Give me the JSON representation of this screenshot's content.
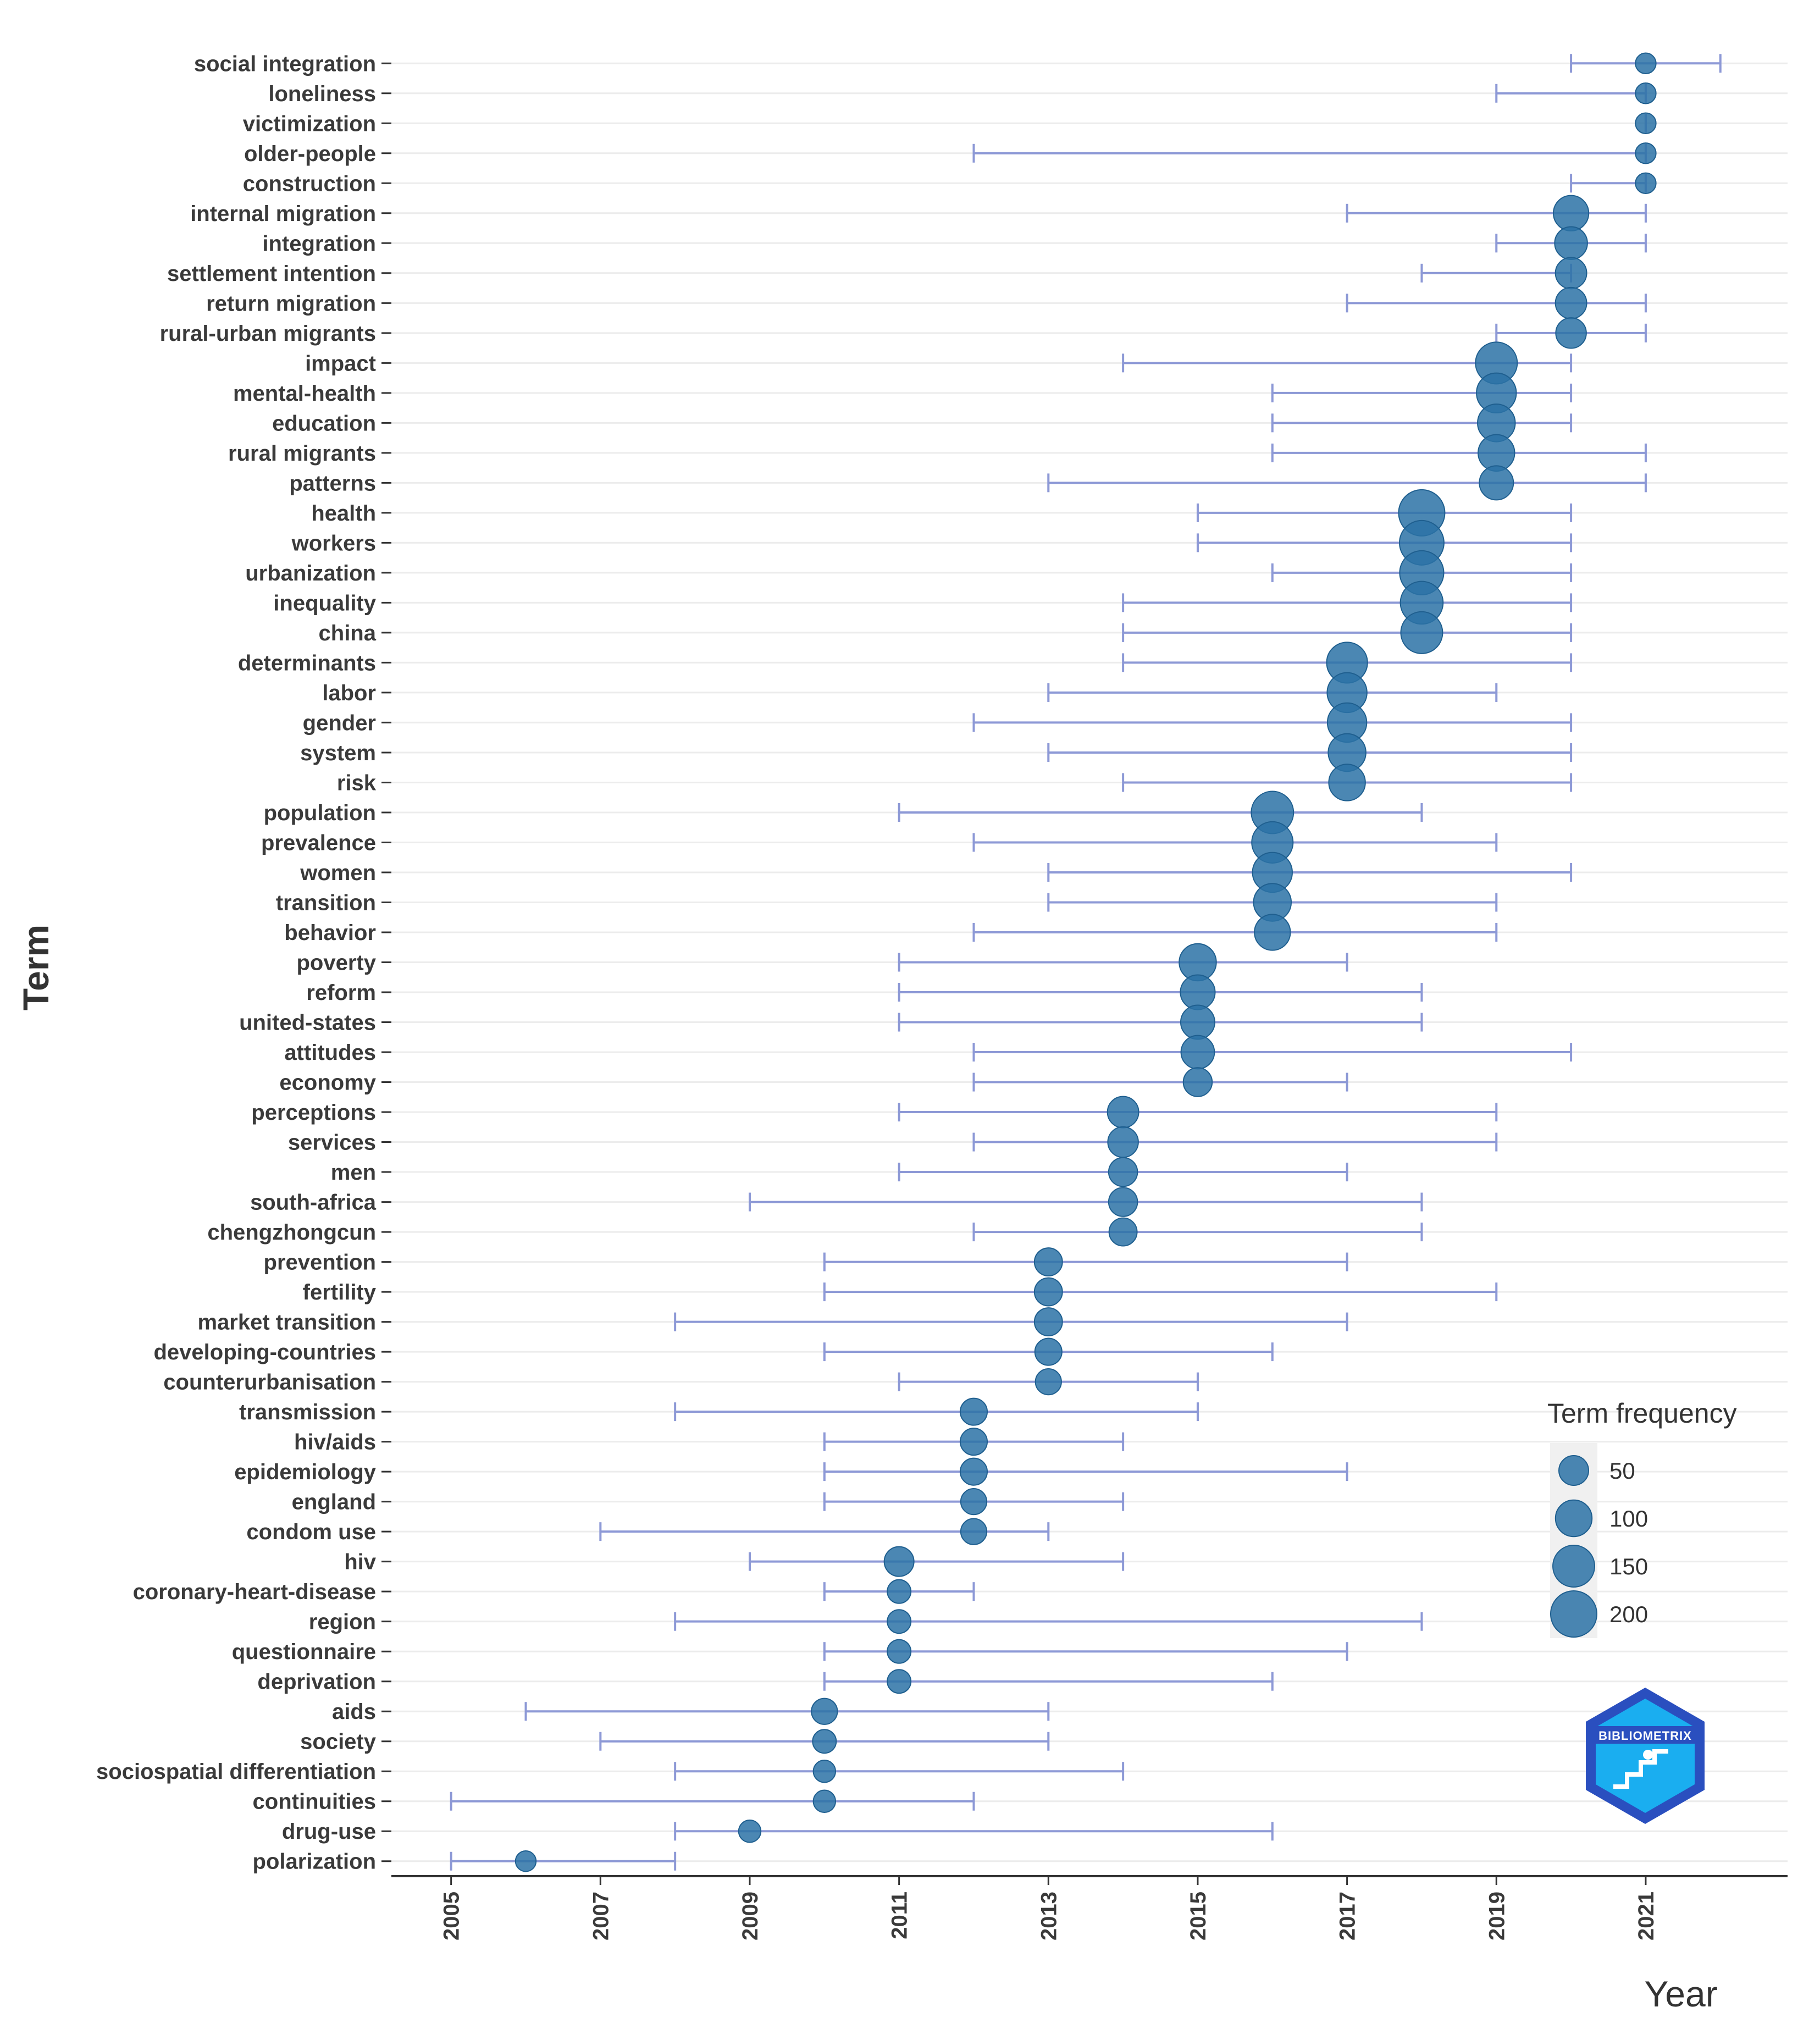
{
  "chart_data": {
    "type": "dot-range",
    "xlabel": "Year",
    "ylabel": "Term",
    "xlim": [
      2004.2,
      2022.9
    ],
    "x_ticks": [
      2005,
      2007,
      2009,
      2011,
      2013,
      2015,
      2017,
      2019,
      2021
    ],
    "terms": [
      {
        "term": "social integration",
        "year": 2021,
        "q1": 2020,
        "q3": 2022,
        "freq": 10
      },
      {
        "term": "loneliness",
        "year": 2021,
        "q1": 2019,
        "q3": 2021,
        "freq": 10
      },
      {
        "term": "victimization",
        "year": 2021,
        "q1": 2021,
        "q3": 2021,
        "freq": 10
      },
      {
        "term": "older-people",
        "year": 2021,
        "q1": 2012,
        "q3": 2021,
        "freq": 10
      },
      {
        "term": "construction",
        "year": 2021,
        "q1": 2020,
        "q3": 2021,
        "freq": 10
      },
      {
        "term": "internal migration",
        "year": 2020,
        "q1": 2017,
        "q3": 2021,
        "freq": 90
      },
      {
        "term": "integration",
        "year": 2020,
        "q1": 2019,
        "q3": 2021,
        "freq": 70
      },
      {
        "term": "settlement intention",
        "year": 2020,
        "q1": 2018,
        "q3": 2020,
        "freq": 60
      },
      {
        "term": "return migration",
        "year": 2020,
        "q1": 2017,
        "q3": 2021,
        "freq": 60
      },
      {
        "term": "rural-urban migrants",
        "year": 2020,
        "q1": 2019,
        "q3": 2021,
        "freq": 55
      },
      {
        "term": "impact",
        "year": 2019,
        "q1": 2014,
        "q3": 2020,
        "freq": 150
      },
      {
        "term": "mental-health",
        "year": 2019,
        "q1": 2016,
        "q3": 2020,
        "freq": 130
      },
      {
        "term": "education",
        "year": 2019,
        "q1": 2016,
        "q3": 2020,
        "freq": 110
      },
      {
        "term": "rural migrants",
        "year": 2019,
        "q1": 2016,
        "q3": 2021,
        "freq": 100
      },
      {
        "term": "patterns",
        "year": 2019,
        "q1": 2013,
        "q3": 2021,
        "freq": 80
      },
      {
        "term": "health",
        "year": 2018,
        "q1": 2015,
        "q3": 2020,
        "freq": 200
      },
      {
        "term": "workers",
        "year": 2018,
        "q1": 2015,
        "q3": 2020,
        "freq": 180
      },
      {
        "term": "urbanization",
        "year": 2018,
        "q1": 2016,
        "q3": 2020,
        "freq": 175
      },
      {
        "term": "inequality",
        "year": 2018,
        "q1": 2014,
        "q3": 2020,
        "freq": 160
      },
      {
        "term": "china",
        "year": 2018,
        "q1": 2014,
        "q3": 2020,
        "freq": 150
      },
      {
        "term": "determinants",
        "year": 2017,
        "q1": 2014,
        "q3": 2020,
        "freq": 140
      },
      {
        "term": "labor",
        "year": 2017,
        "q1": 2013,
        "q3": 2019,
        "freq": 130
      },
      {
        "term": "gender",
        "year": 2017,
        "q1": 2012,
        "q3": 2020,
        "freq": 125
      },
      {
        "term": "system",
        "year": 2017,
        "q1": 2013,
        "q3": 2020,
        "freq": 110
      },
      {
        "term": "risk",
        "year": 2017,
        "q1": 2014,
        "q3": 2020,
        "freq": 100
      },
      {
        "term": "population",
        "year": 2016,
        "q1": 2011,
        "q3": 2018,
        "freq": 155
      },
      {
        "term": "prevalence",
        "year": 2016,
        "q1": 2012,
        "q3": 2019,
        "freq": 145
      },
      {
        "term": "women",
        "year": 2016,
        "q1": 2013,
        "q3": 2020,
        "freq": 130
      },
      {
        "term": "transition",
        "year": 2016,
        "q1": 2013,
        "q3": 2019,
        "freq": 110
      },
      {
        "term": "behavior",
        "year": 2016,
        "q1": 2012,
        "q3": 2019,
        "freq": 95
      },
      {
        "term": "poverty",
        "year": 2015,
        "q1": 2011,
        "q3": 2017,
        "freq": 105
      },
      {
        "term": "reform",
        "year": 2015,
        "q1": 2011,
        "q3": 2018,
        "freq": 85
      },
      {
        "term": "united-states",
        "year": 2015,
        "q1": 2011,
        "q3": 2018,
        "freq": 80
      },
      {
        "term": "attitudes",
        "year": 2015,
        "q1": 2012,
        "q3": 2020,
        "freq": 75
      },
      {
        "term": "economy",
        "year": 2015,
        "q1": 2012,
        "q3": 2017,
        "freq": 45
      },
      {
        "term": "perceptions",
        "year": 2014,
        "q1": 2011,
        "q3": 2019,
        "freq": 60
      },
      {
        "term": "services",
        "year": 2014,
        "q1": 2012,
        "q3": 2019,
        "freq": 55
      },
      {
        "term": "men",
        "year": 2014,
        "q1": 2011,
        "q3": 2017,
        "freq": 45
      },
      {
        "term": "south-africa",
        "year": 2014,
        "q1": 2009,
        "q3": 2018,
        "freq": 45
      },
      {
        "term": "chengzhongcun",
        "year": 2014,
        "q1": 2012,
        "q3": 2018,
        "freq": 40
      },
      {
        "term": "prevention",
        "year": 2013,
        "q1": 2010,
        "q3": 2017,
        "freq": 40
      },
      {
        "term": "fertility",
        "year": 2013,
        "q1": 2010,
        "q3": 2019,
        "freq": 40
      },
      {
        "term": "market transition",
        "year": 2013,
        "q1": 2008,
        "q3": 2017,
        "freq": 40
      },
      {
        "term": "developing-countries",
        "year": 2013,
        "q1": 2010,
        "q3": 2016,
        "freq": 35
      },
      {
        "term": "counterurbanisation",
        "year": 2013,
        "q1": 2011,
        "q3": 2015,
        "freq": 30
      },
      {
        "term": "transmission",
        "year": 2012,
        "q1": 2008,
        "q3": 2015,
        "freq": 35
      },
      {
        "term": "hiv/aids",
        "year": 2012,
        "q1": 2010,
        "q3": 2014,
        "freq": 35
      },
      {
        "term": "epidemiology",
        "year": 2012,
        "q1": 2010,
        "q3": 2017,
        "freq": 35
      },
      {
        "term": "england",
        "year": 2012,
        "q1": 2010,
        "q3": 2014,
        "freq": 30
      },
      {
        "term": "condom use",
        "year": 2012,
        "q1": 2007,
        "q3": 2013,
        "freq": 30
      },
      {
        "term": "hiv",
        "year": 2011,
        "q1": 2009,
        "q3": 2014,
        "freq": 50
      },
      {
        "term": "coronary-heart-disease",
        "year": 2011,
        "q1": 2010,
        "q3": 2012,
        "freq": 20
      },
      {
        "term": "region",
        "year": 2011,
        "q1": 2008,
        "q3": 2018,
        "freq": 20
      },
      {
        "term": "questionnaire",
        "year": 2011,
        "q1": 2010,
        "q3": 2017,
        "freq": 20
      },
      {
        "term": "deprivation",
        "year": 2011,
        "q1": 2010,
        "q3": 2016,
        "freq": 20
      },
      {
        "term": "aids",
        "year": 2010,
        "q1": 2006,
        "q3": 2013,
        "freq": 30
      },
      {
        "term": "society",
        "year": 2010,
        "q1": 2007,
        "q3": 2013,
        "freq": 20
      },
      {
        "term": "sociospatial differentiation",
        "year": 2010,
        "q1": 2008,
        "q3": 2014,
        "freq": 15
      },
      {
        "term": "continuities",
        "year": 2010,
        "q1": 2005,
        "q3": 2012,
        "freq": 15
      },
      {
        "term": "drug-use",
        "year": 2009,
        "q1": 2008,
        "q3": 2016,
        "freq": 15
      },
      {
        "term": "polarization",
        "year": 2006,
        "q1": 2005,
        "q3": 2008,
        "freq": 10
      }
    ],
    "legend": {
      "title": "Term frequency",
      "position": "right",
      "sizes": [
        50,
        100,
        150,
        200
      ]
    },
    "logo_text": "BIBLIOMETRIX",
    "colors": {
      "point": "#2c72a6",
      "whisker": "#8d99d6",
      "grid": "#ececec",
      "axis": "#333333",
      "legend_bg": "#f0f0f0",
      "logo_light": "#1aaef0",
      "logo_dark": "#2a4fbf"
    }
  }
}
